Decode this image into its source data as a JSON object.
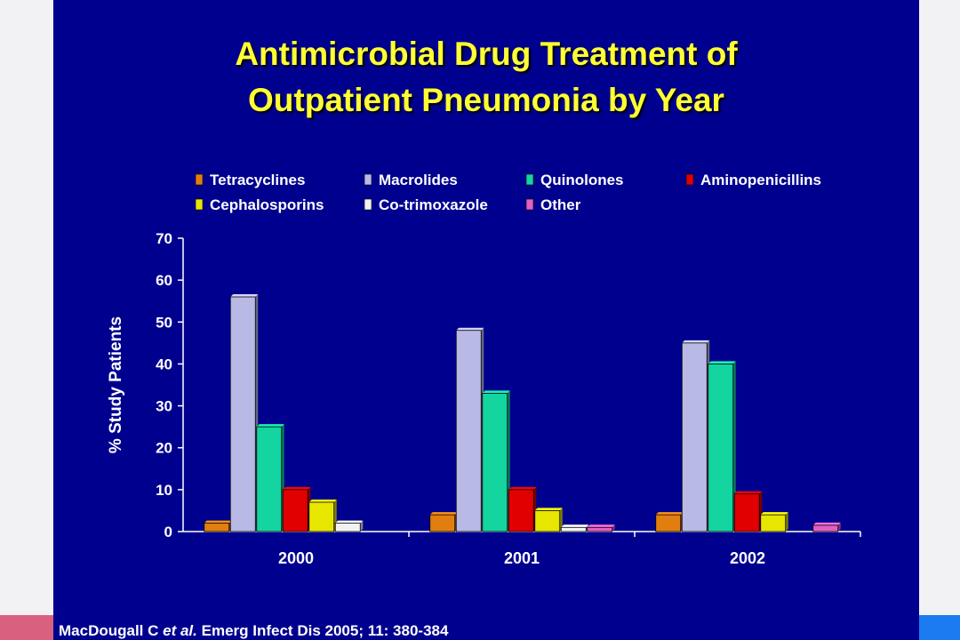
{
  "slide": {
    "title_line_1": "Antimicrobial Drug Treatment of",
    "title_line_2": "Outpatient Pneumonia by Year",
    "citation_authors": "MacDougall C",
    "citation_etal": "et al.",
    "citation_source": "Emerg Infect Dis 2005; 11: 380-384"
  },
  "colors": {
    "background": "#00008f",
    "title": "#ffff33"
  },
  "chart_data": {
    "type": "bar",
    "title": "",
    "xlabel": "",
    "ylabel": "% Study Patients",
    "ylim": [
      0,
      70
    ],
    "yticks": [
      0,
      10,
      20,
      30,
      40,
      50,
      60,
      70
    ],
    "grid": false,
    "legend_position": "top",
    "categories": [
      "2000",
      "2001",
      "2002"
    ],
    "series": [
      {
        "name": "Tetracyclines",
        "color": "#e07f10",
        "values": [
          2,
          4,
          4
        ]
      },
      {
        "name": "Macrolides",
        "color": "#b9b9e6",
        "values": [
          56,
          48,
          45
        ]
      },
      {
        "name": "Quinolones",
        "color": "#14d4a0",
        "values": [
          25,
          33,
          40
        ]
      },
      {
        "name": "Aminopenicillins",
        "color": "#e00000",
        "values": [
          10,
          10,
          9
        ]
      },
      {
        "name": "Cephalosporins",
        "color": "#e6e600",
        "values": [
          7,
          5,
          4
        ]
      },
      {
        "name": "Co-trimoxazole",
        "color": "#f2f2f2",
        "values": [
          2,
          1,
          0
        ]
      },
      {
        "name": "Other",
        "color": "#e060c0",
        "values": [
          0,
          1,
          1.5
        ]
      }
    ]
  }
}
